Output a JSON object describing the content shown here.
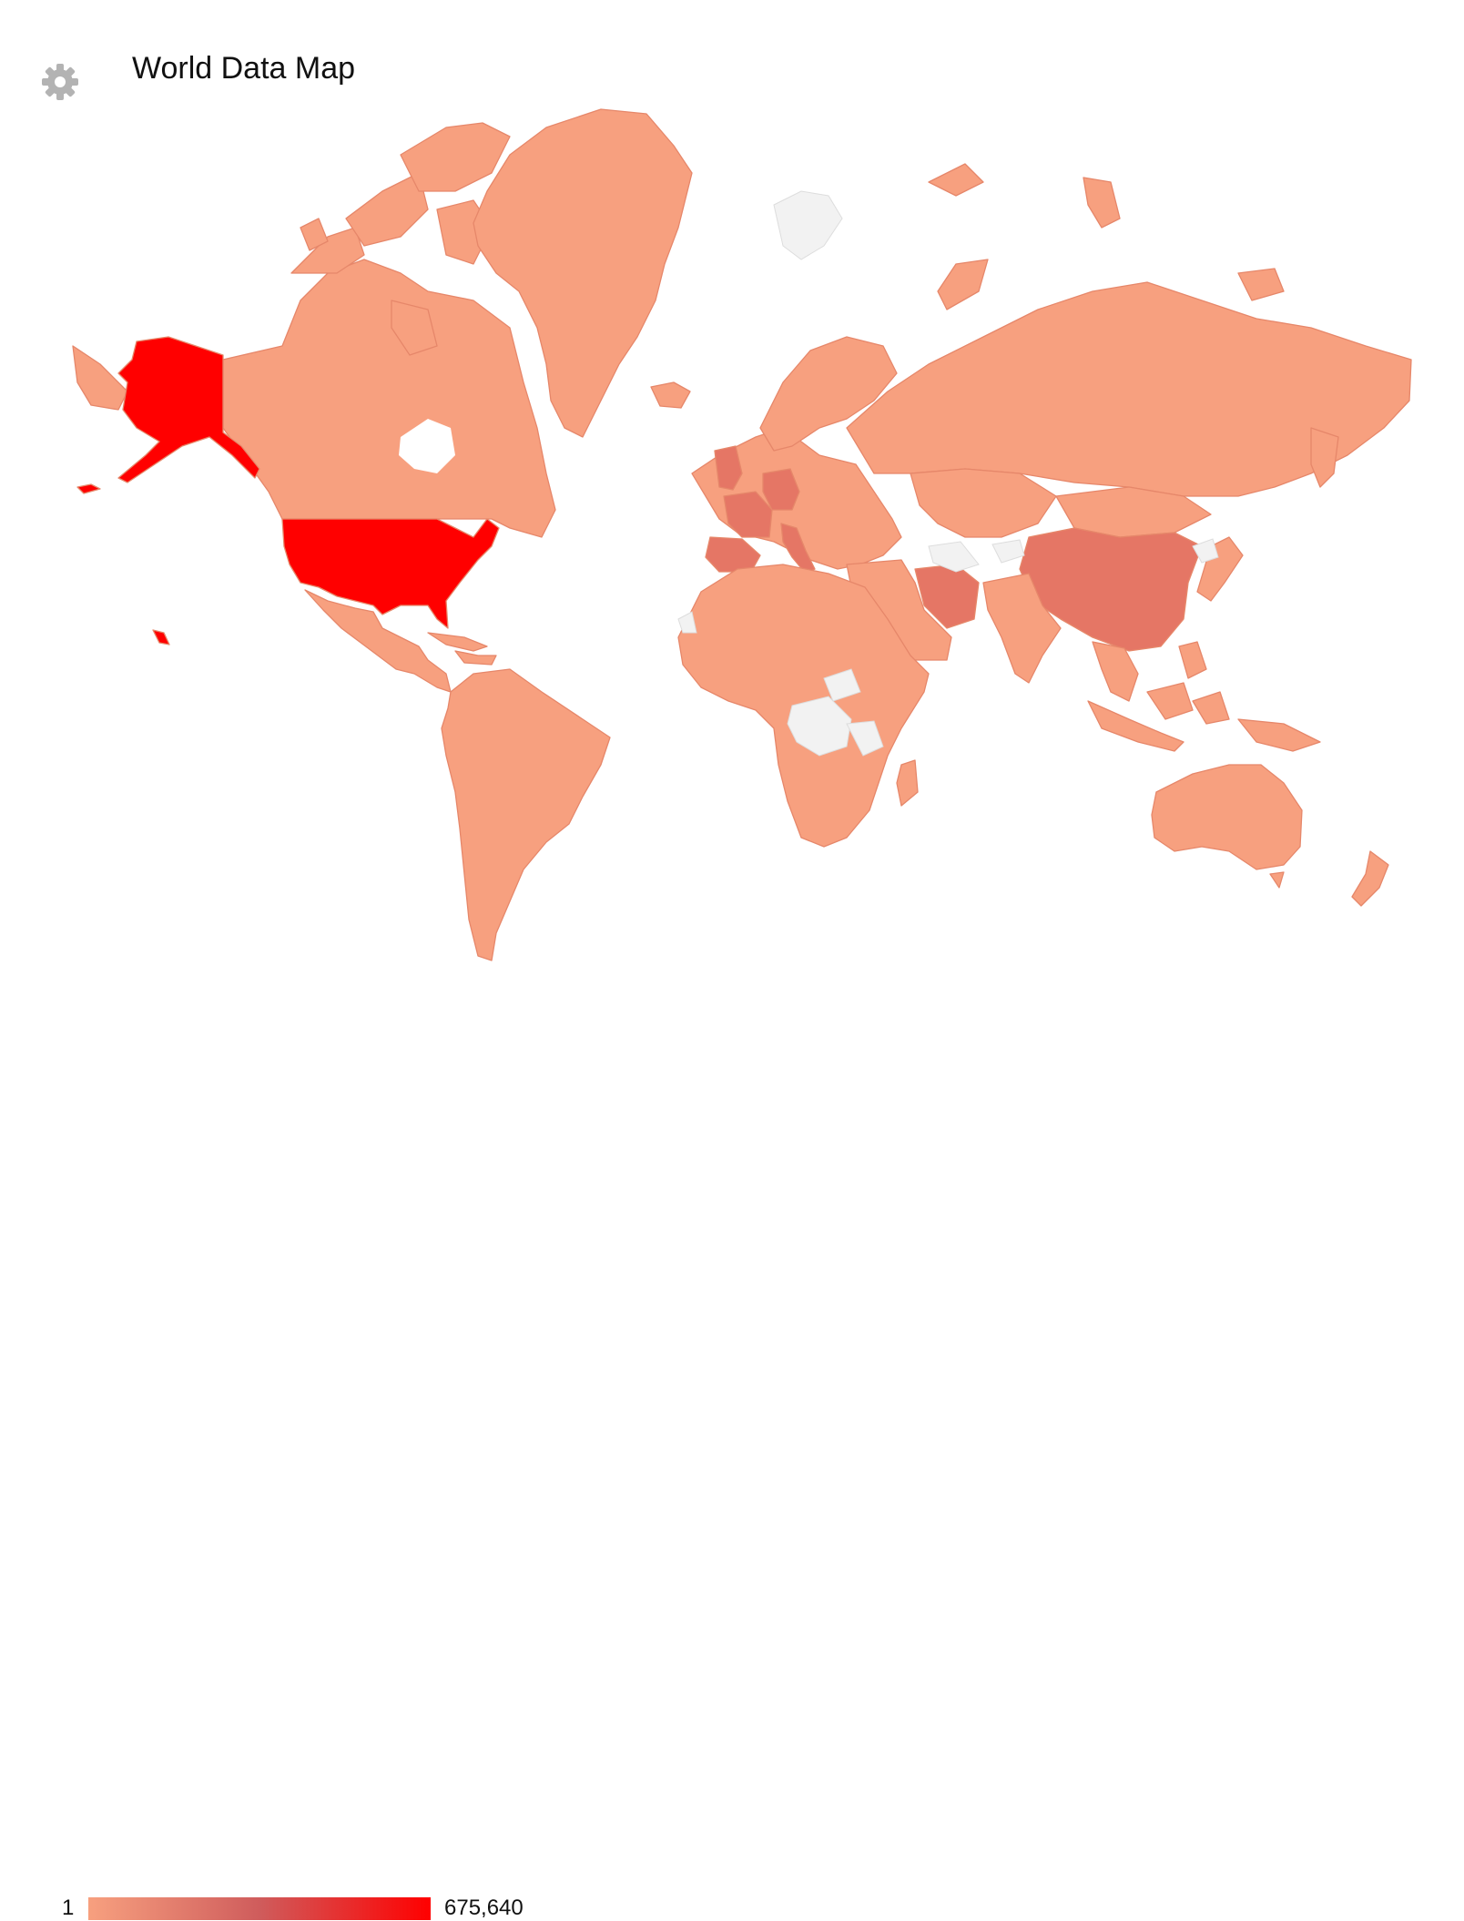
{
  "title": "World Data Map",
  "settings_icon": "gear-icon",
  "legend": {
    "min_label": "1",
    "max_label": "675,640",
    "min_color": "#f7a07f",
    "max_color": "#ff0000"
  },
  "colors": {
    "base": "#f7a07f",
    "border": "#e6876a",
    "no_data": "#f2f2f2",
    "highest": "#ff0000",
    "mid": "#e57665"
  },
  "regions": [
    {
      "name": "United States",
      "level": "highest"
    },
    {
      "name": "Alaska",
      "level": "highest"
    },
    {
      "name": "Spain",
      "level": "mid"
    },
    {
      "name": "France",
      "level": "mid"
    },
    {
      "name": "Germany",
      "level": "mid"
    },
    {
      "name": "Italy",
      "level": "mid"
    },
    {
      "name": "China",
      "level": "mid"
    },
    {
      "name": "Iran",
      "level": "mid"
    },
    {
      "name": "United Kingdom",
      "level": "mid"
    }
  ]
}
